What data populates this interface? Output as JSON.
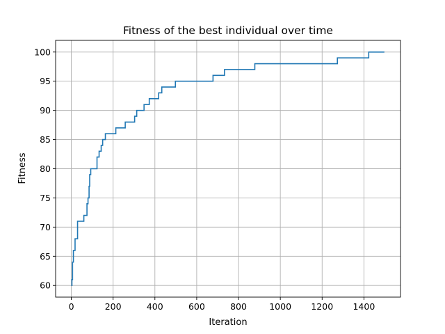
{
  "chart_data": {
    "type": "line",
    "title": "Fitness of the best individual over time",
    "xlabel": "Iteration",
    "ylabel": "Fitness",
    "xlim": [
      -75,
      1575
    ],
    "ylim": [
      58,
      102
    ],
    "xticks": [
      0,
      200,
      400,
      600,
      800,
      1000,
      1200,
      1400
    ],
    "yticks": [
      60,
      65,
      70,
      75,
      80,
      85,
      90,
      95,
      100
    ],
    "grid": true,
    "step": "post",
    "series": [
      {
        "color": "#1f77b4",
        "x": [
          0,
          3,
          6,
          10,
          18,
          30,
          60,
          75,
          80,
          85,
          88,
          93,
          103,
          123,
          133,
          143,
          150,
          163,
          213,
          258,
          303,
          313,
          348,
          373,
          418,
          433,
          498,
          678,
          733,
          878,
          1273,
          1423,
          1498
        ],
        "y": [
          60,
          61,
          64,
          66,
          68,
          71,
          72,
          74,
          75,
          77,
          79,
          80,
          80,
          82,
          83,
          84,
          85,
          86,
          87,
          88,
          89,
          90,
          91,
          92,
          93,
          94,
          95,
          96,
          97,
          98,
          99,
          100,
          100
        ]
      }
    ]
  }
}
